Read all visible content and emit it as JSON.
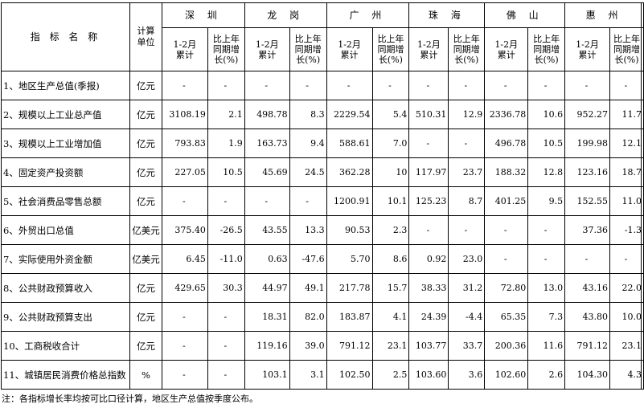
{
  "header": {
    "indicator_name": "指 标 名 称",
    "unit_line1": "计算",
    "unit_line2": "单位",
    "cities": [
      "深 圳",
      "龙 岗",
      "广 州",
      "珠 海",
      "佛 山",
      "惠 州"
    ],
    "sub_cumulative_line1": "1-2月",
    "sub_cumulative_line2": "累计",
    "sub_growth_line1": "比上年",
    "sub_growth_line2": "同期增",
    "sub_growth_line3": "长(%)"
  },
  "rows": [
    {
      "label": "1、地区生产总值(季报)",
      "unit": "亿元",
      "values": [
        "-",
        "-",
        "-",
        "-",
        "-",
        "-",
        "-",
        "-",
        "-",
        "-",
        "-",
        "-"
      ]
    },
    {
      "label": "2、规模以上工业总产值",
      "unit": "亿元",
      "values": [
        "3108.19",
        "2.1",
        "498.78",
        "8.3",
        "2229.54",
        "5.4",
        "510.31",
        "12.9",
        "2336.78",
        "10.6",
        "952.27",
        "11.7"
      ]
    },
    {
      "label": "3、规模以上工业增加值",
      "unit": "亿元",
      "values": [
        "793.83",
        "1.9",
        "163.73",
        "9.4",
        "588.61",
        "7.0",
        "-",
        "-",
        "496.78",
        "10.5",
        "199.98",
        "12.1"
      ]
    },
    {
      "label": "4、固定资产投资额",
      "unit": "亿元",
      "values": [
        "227.05",
        "10.5",
        "45.69",
        "24.5",
        "362.28",
        "10",
        "117.97",
        "23.7",
        "188.32",
        "12.8",
        "123.16",
        "18.7"
      ]
    },
    {
      "label": "5、社会消费品零售总额",
      "unit": "亿元",
      "values": [
        "-",
        "-",
        "-",
        "-",
        "1200.91",
        "10.1",
        "125.23",
        "8.7",
        "401.25",
        "9.5",
        "152.55",
        "11.0"
      ]
    },
    {
      "label": "6、外贸出口总值",
      "unit": "亿美元",
      "values": [
        "375.40",
        "-26.5",
        "43.55",
        "13.3",
        "90.53",
        "2.3",
        "-",
        "-",
        "-",
        "-",
        "37.36",
        "-1.3"
      ]
    },
    {
      "label": "7、实际使用外资金额",
      "unit": "亿美元",
      "values": [
        "6.45",
        "-11.0",
        "0.63",
        "-47.6",
        "5.70",
        "8.6",
        "0.92",
        "23.0",
        "-",
        "-",
        "-",
        "-"
      ]
    },
    {
      "label": "8、公共财政预算收入",
      "unit": "亿元",
      "values": [
        "429.65",
        "30.3",
        "44.97",
        "49.1",
        "217.78",
        "15.7",
        "38.33",
        "31.2",
        "72.80",
        "13.0",
        "43.16",
        "22.0"
      ]
    },
    {
      "label": "9、公共财政预算支出",
      "unit": "亿元",
      "values": [
        "-",
        "-",
        "18.31",
        "82.0",
        "183.87",
        "4.1",
        "24.39",
        "-4.4",
        "65.35",
        "7.3",
        "43.80",
        "10.0"
      ]
    },
    {
      "label": "10、工商税收合计",
      "unit": "亿元",
      "values": [
        "-",
        "-",
        "119.16",
        "39.0",
        "791.12",
        "23.1",
        "103.77",
        "33.7",
        "200.36",
        "11.6",
        "791.12",
        "23.1"
      ]
    },
    {
      "label": "11、城镇居民消费价格总指数",
      "unit": "%",
      "values": [
        "-",
        "-",
        "103.1",
        "3.1",
        "102.50",
        "2.5",
        "103.60",
        "3.6",
        "102.60",
        "2.6",
        "104.30",
        "4.3"
      ]
    }
  ],
  "note": "注：各指标增长率均按可比口径计算，地区生产总值按季度公布。"
}
